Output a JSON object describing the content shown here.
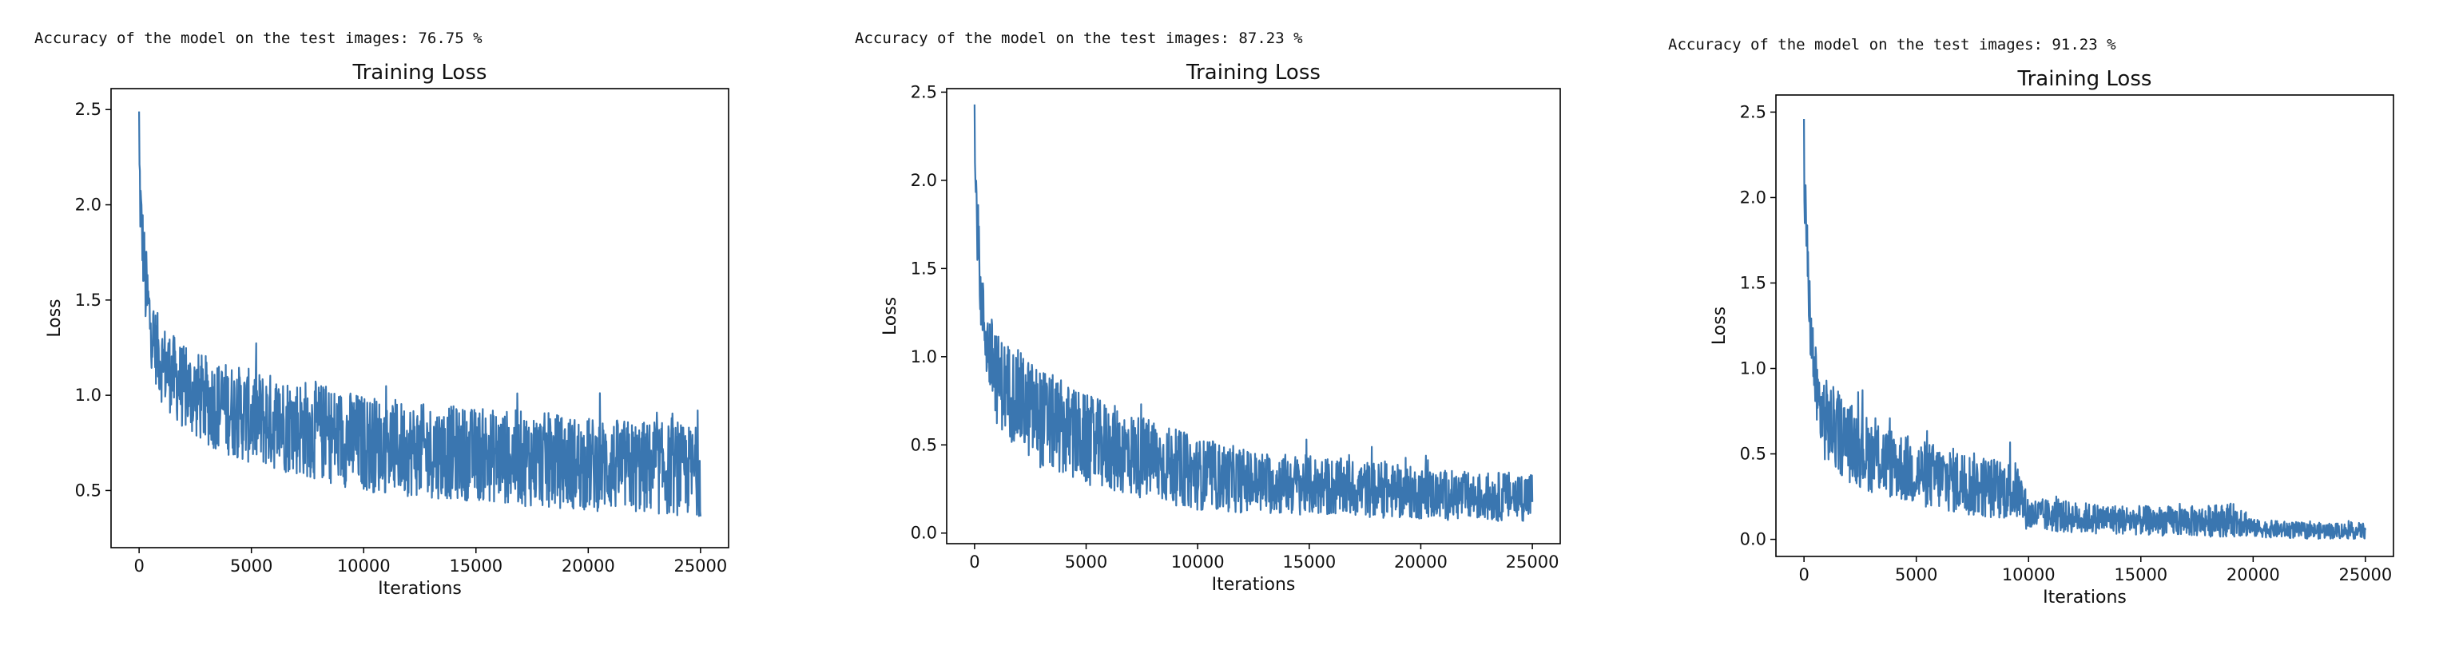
{
  "accuracy_lines": [
    "Accuracy of the model on the test images: 76.75 %",
    "Accuracy of the model on the test images: 87.23 %",
    "Accuracy of the model on the test images: 91.23 %"
  ],
  "colors": {
    "series": "#3a76b0",
    "axes": "#000000",
    "background": "#ffffff"
  },
  "chart_data": [
    {
      "type": "line",
      "title": "Training Loss",
      "xlabel": "Iterations",
      "ylabel": "Loss",
      "xlim": [
        -1250,
        26250
      ],
      "ylim": [
        0.2,
        2.61
      ],
      "xticks": [
        0,
        5000,
        10000,
        15000,
        20000,
        25000
      ],
      "yticks": [
        0.5,
        1.0,
        1.5,
        2.0,
        2.5
      ],
      "ytick_labels": [
        "0.5",
        "1.0",
        "1.5",
        "2.0",
        "2.5"
      ],
      "grid": false,
      "series": [
        {
          "x": [
            0,
            100,
            300,
            600,
            1000,
            2000,
            3000,
            5000,
            7500,
            10000,
            12500,
            15000,
            17500,
            20000,
            22500,
            25000
          ],
          "upper": [
            2.49,
            2.1,
            1.8,
            1.5,
            1.4,
            1.27,
            1.22,
            1.15,
            1.1,
            1.02,
            0.97,
            0.95,
            0.93,
            0.9,
            0.88,
            0.85
          ],
          "lower": [
            1.9,
            1.7,
            1.3,
            1.1,
            0.95,
            0.8,
            0.72,
            0.62,
            0.55,
            0.48,
            0.45,
            0.43,
            0.4,
            0.38,
            0.36,
            0.35
          ]
        }
      ]
    },
    {
      "type": "line",
      "title": "Training Loss",
      "xlabel": "Iterations",
      "ylabel": "Loss",
      "xlim": [
        -1250,
        26250
      ],
      "ylim": [
        -0.06,
        2.52
      ],
      "xticks": [
        0,
        5000,
        10000,
        15000,
        20000,
        25000
      ],
      "yticks": [
        0.0,
        0.5,
        1.0,
        1.5,
        2.0,
        2.5
      ],
      "ytick_labels": [
        "0.0",
        "0.5",
        "1.0",
        "1.5",
        "2.0",
        "2.5"
      ],
      "grid": false,
      "series": [
        {
          "x": [
            0,
            100,
            300,
            600,
            1000,
            2000,
            3000,
            5000,
            7500,
            10000,
            12500,
            15000,
            17500,
            20000,
            22500,
            25000
          ],
          "upper": [
            2.43,
            2.0,
            1.5,
            1.3,
            1.15,
            1.05,
            0.95,
            0.8,
            0.68,
            0.55,
            0.48,
            0.45,
            0.42,
            0.38,
            0.35,
            0.36
          ],
          "lower": [
            1.8,
            1.6,
            1.1,
            0.8,
            0.6,
            0.45,
            0.35,
            0.25,
            0.18,
            0.12,
            0.1,
            0.09,
            0.08,
            0.07,
            0.06,
            0.06
          ]
        }
      ]
    },
    {
      "type": "line",
      "title": "Training Loss",
      "xlabel": "Iterations",
      "ylabel": "Loss",
      "xlim": [
        -1250,
        26250
      ],
      "ylim": [
        -0.1,
        2.6
      ],
      "xticks": [
        0,
        5000,
        10000,
        15000,
        20000,
        25000
      ],
      "yticks": [
        0.0,
        0.5,
        1.0,
        1.5,
        2.0,
        2.5
      ],
      "ytick_labels": [
        "0.0",
        "0.5",
        "1.0",
        "1.5",
        "2.0",
        "2.5"
      ],
      "grid": false,
      "series": [
        {
          "x": [
            0,
            100,
            300,
            600,
            1000,
            2000,
            3000,
            5000,
            7500,
            9500,
            10000,
            12500,
            15000,
            17500,
            19500,
            20000,
            22500,
            25000
          ],
          "upper": [
            2.46,
            2.0,
            1.4,
            1.05,
            0.95,
            0.82,
            0.72,
            0.6,
            0.52,
            0.46,
            0.25,
            0.22,
            0.2,
            0.2,
            0.22,
            0.12,
            0.1,
            0.1
          ],
          "lower": [
            1.8,
            1.6,
            1.0,
            0.55,
            0.42,
            0.32,
            0.26,
            0.18,
            0.12,
            0.1,
            0.04,
            0.03,
            0.02,
            0.01,
            0.01,
            0.01,
            0.0,
            0.0
          ]
        }
      ]
    }
  ]
}
